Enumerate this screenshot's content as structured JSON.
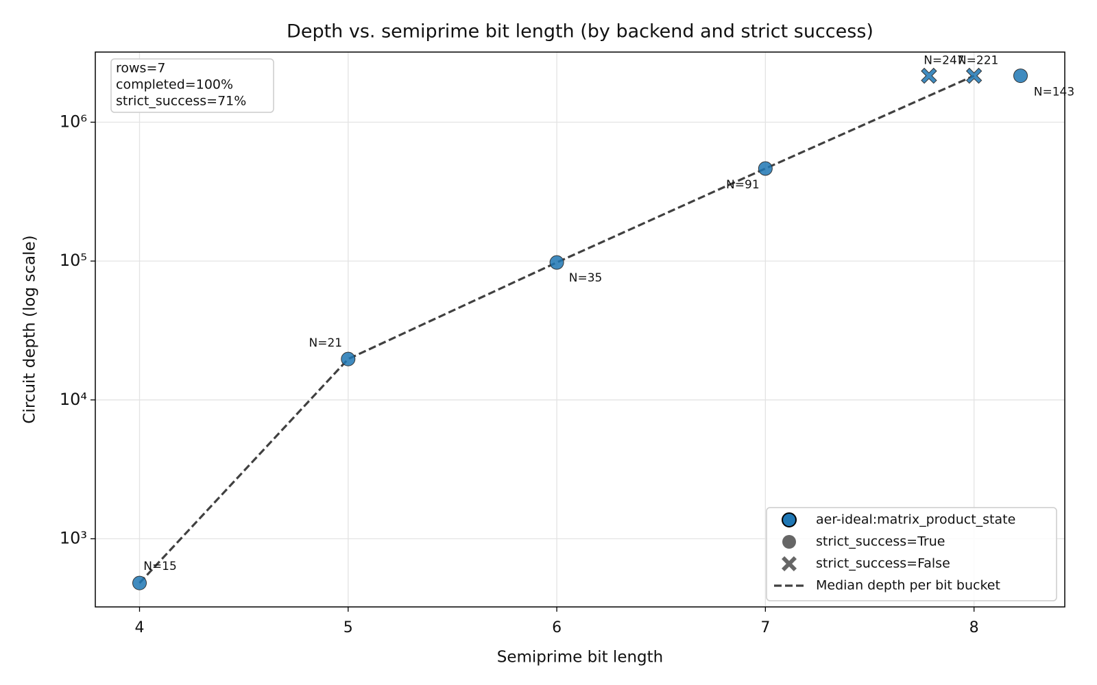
{
  "chart_data": {
    "type": "scatter",
    "title": "Depth vs. semiprime bit length (by backend and strict success)",
    "x_label": "Semiprime bit length",
    "y_label": "Circuit depth (log scale)",
    "xlim": [
      3.788,
      8.435
    ],
    "ylim": [
      323,
      3200000
    ],
    "xticks": [
      4,
      5,
      6,
      7,
      8
    ],
    "yticks": [
      {
        "value": 1000,
        "label": "10³"
      },
      {
        "value": 10000,
        "label": "10⁴"
      },
      {
        "value": 100000,
        "label": "10⁵"
      },
      {
        "value": 1000000,
        "label": "10⁶"
      }
    ],
    "y_log": true,
    "grid": true,
    "legend_loc": "lower right",
    "annotations": [
      "rows=7",
      "completed=100%",
      "strict_success=71%"
    ],
    "series": [
      {
        "name": "aer-ideal:matrix_product_state",
        "color": "#1f77b4",
        "x": [
          4,
          5,
          6,
          7,
          7.784,
          8,
          8.223
        ],
        "values": [
          480,
          19700,
          97700,
          464000,
          2160000,
          2160000,
          2160000
        ],
        "strict_success": [
          true,
          true,
          true,
          true,
          false,
          false,
          true
        ],
        "point_labels": [
          "N=15",
          "N=21",
          "N=35",
          "N=91",
          "N=247",
          "N=221",
          "N=143"
        ]
      }
    ],
    "marker_legend": [
      {
        "value": true,
        "label": "strict_success=True"
      },
      {
        "value": false,
        "label": "strict_success=False"
      }
    ],
    "median_line": {
      "name": "Median depth per bit bucket",
      "color": "#404040",
      "x": [
        4,
        5,
        6,
        7,
        8
      ],
      "values": [
        480,
        19700,
        97700,
        464000,
        2160000
      ]
    }
  }
}
